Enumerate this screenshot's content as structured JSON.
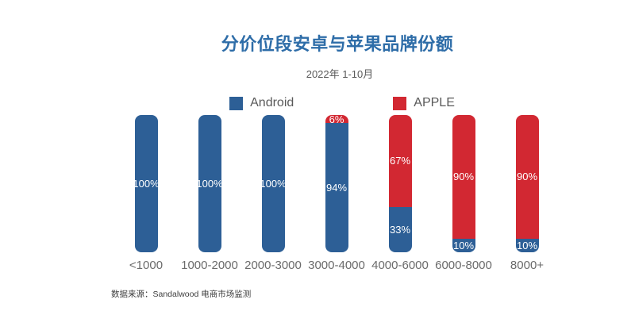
{
  "header": {
    "title": "分价位段安卓与苹果品牌份额",
    "subtitle": "2022年 1-10月"
  },
  "legend": {
    "items": [
      {
        "label": "Android",
        "color": "#2D5F96"
      },
      {
        "label": "APPLE",
        "color": "#D22832"
      }
    ]
  },
  "chart_data": {
    "type": "bar",
    "stacked": true,
    "orientation": "vertical",
    "unit": "%",
    "title": "分价位段安卓与苹果品牌份额",
    "subtitle": "2022年 1-10月",
    "categories": [
      "<1000",
      "1000-2000",
      "2000-3000",
      "3000-4000",
      "4000-6000",
      "6000-8000",
      "8000+"
    ],
    "series": [
      {
        "name": "Android",
        "color": "#2D5F96",
        "values": [
          100,
          100,
          100,
          94,
          33,
          10,
          10
        ]
      },
      {
        "name": "APPLE",
        "color": "#D22832",
        "values": [
          0,
          0,
          0,
          6,
          67,
          90,
          90
        ]
      }
    ],
    "ylim": [
      0,
      100
    ],
    "value_labels": true,
    "legend_position": "top",
    "grid": false,
    "axes_visible": false
  },
  "footer": {
    "source": "数据来源：Sandalwood 电商市场监测"
  },
  "colors": {
    "title": "#2E6DA8",
    "android": "#2D5F96",
    "apple": "#D22832",
    "text_gray": "#595959"
  }
}
